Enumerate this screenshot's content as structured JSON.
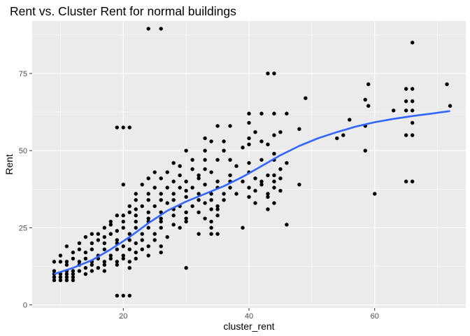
{
  "chart_data": {
    "type": "scatter",
    "title": "Rent vs. Cluster Rent for normal buildings",
    "xlabel": "cluster_rent",
    "ylabel": "Rent",
    "xlim": [
      5.5,
      74.5
    ],
    "ylim": [
      -1,
      92
    ],
    "x_ticks": [
      20,
      40,
      60
    ],
    "y_ticks": [
      0,
      25,
      50,
      75
    ],
    "grid": true,
    "legend": "none",
    "colors": {
      "panel": "#ebebeb",
      "grid_major": "#ffffff",
      "points": "#000000",
      "smooth": "#3366ff",
      "tick_label": "#4d4d4d"
    },
    "points": [
      [
        24,
        89.5
      ],
      [
        26,
        89.5
      ],
      [
        66,
        85
      ],
      [
        43,
        75
      ],
      [
        44,
        75
      ],
      [
        71.5,
        71.5
      ],
      [
        59,
        71.5
      ],
      [
        65,
        70
      ],
      [
        66,
        70
      ],
      [
        49,
        67
      ],
      [
        58.5,
        66.5
      ],
      [
        65,
        66
      ],
      [
        66,
        66
      ],
      [
        59,
        64.5
      ],
      [
        72,
        64.5
      ],
      [
        40,
        62
      ],
      [
        42,
        62
      ],
      [
        44,
        62
      ],
      [
        46,
        62
      ],
      [
        63,
        63
      ],
      [
        65,
        63
      ],
      [
        66,
        63
      ],
      [
        56,
        60
      ],
      [
        40,
        59
      ],
      [
        35,
        58
      ],
      [
        37,
        58
      ],
      [
        58.5,
        58
      ],
      [
        66,
        59
      ],
      [
        19,
        57.5
      ],
      [
        20,
        57.5
      ],
      [
        21,
        57.5
      ],
      [
        48,
        57
      ],
      [
        41,
        56
      ],
      [
        45,
        56
      ],
      [
        54,
        54
      ],
      [
        55,
        55
      ],
      [
        33,
        54
      ],
      [
        34,
        53
      ],
      [
        36,
        53
      ],
      [
        40,
        54
      ],
      [
        42,
        53
      ],
      [
        44,
        55
      ],
      [
        66,
        55
      ],
      [
        65,
        55
      ],
      [
        40,
        52
      ],
      [
        43,
        52
      ],
      [
        30,
        50
      ],
      [
        33,
        50
      ],
      [
        36,
        50
      ],
      [
        39,
        51
      ],
      [
        58.5,
        50
      ],
      [
        44,
        49
      ],
      [
        28,
        46
      ],
      [
        31,
        47
      ],
      [
        33,
        47
      ],
      [
        35,
        47
      ],
      [
        37,
        47
      ],
      [
        29,
        45
      ],
      [
        31,
        44
      ],
      [
        33,
        44
      ],
      [
        38,
        45
      ],
      [
        40,
        46
      ],
      [
        42,
        47
      ],
      [
        44,
        47
      ],
      [
        46,
        46
      ],
      [
        25,
        43
      ],
      [
        27,
        43
      ],
      [
        29,
        42
      ],
      [
        32,
        42
      ],
      [
        34,
        43
      ],
      [
        37,
        42
      ],
      [
        40,
        43
      ],
      [
        43,
        42
      ],
      [
        44,
        42
      ],
      [
        45,
        44
      ],
      [
        24,
        41
      ],
      [
        26,
        41
      ],
      [
        28,
        40
      ],
      [
        30,
        40
      ],
      [
        32,
        41
      ],
      [
        35,
        40
      ],
      [
        37,
        40
      ],
      [
        39,
        40
      ],
      [
        41,
        41
      ],
      [
        42,
        40
      ],
      [
        44,
        40
      ],
      [
        45,
        41
      ],
      [
        20,
        39
      ],
      [
        23,
        39
      ],
      [
        25,
        38
      ],
      [
        27,
        38
      ],
      [
        29,
        38
      ],
      [
        31,
        38
      ],
      [
        33,
        39
      ],
      [
        35,
        38
      ],
      [
        37,
        38
      ],
      [
        40,
        38
      ],
      [
        42,
        39
      ],
      [
        44,
        38
      ],
      [
        48,
        39
      ],
      [
        65,
        40
      ],
      [
        66,
        40
      ],
      [
        22,
        36
      ],
      [
        24,
        36
      ],
      [
        26,
        36
      ],
      [
        28,
        36
      ],
      [
        30,
        37
      ],
      [
        32,
        36
      ],
      [
        34,
        36
      ],
      [
        36,
        36
      ],
      [
        38,
        36
      ],
      [
        41,
        37
      ],
      [
        43,
        36
      ],
      [
        45,
        37
      ],
      [
        60,
        36
      ],
      [
        22,
        34
      ],
      [
        24,
        34
      ],
      [
        26,
        34
      ],
      [
        28,
        34
      ],
      [
        30,
        35
      ],
      [
        32,
        34
      ],
      [
        34,
        34
      ],
      [
        36,
        34
      ],
      [
        40,
        35
      ],
      [
        43,
        35
      ],
      [
        21,
        32
      ],
      [
        23,
        32
      ],
      [
        25,
        32
      ],
      [
        27,
        33
      ],
      [
        29,
        32
      ],
      [
        31,
        32
      ],
      [
        33,
        33
      ],
      [
        35,
        32
      ],
      [
        41,
        33
      ],
      [
        44,
        33
      ],
      [
        21,
        30
      ],
      [
        22,
        31
      ],
      [
        24,
        30
      ],
      [
        26,
        30
      ],
      [
        28,
        31
      ],
      [
        30,
        30
      ],
      [
        32,
        30
      ],
      [
        34,
        31
      ],
      [
        35,
        31
      ],
      [
        43,
        31
      ],
      [
        19,
        29
      ],
      [
        20,
        29
      ],
      [
        22,
        29
      ],
      [
        24,
        28
      ],
      [
        26,
        28
      ],
      [
        28,
        29
      ],
      [
        30,
        28
      ],
      [
        33,
        28
      ],
      [
        35,
        29
      ],
      [
        18,
        27
      ],
      [
        20,
        27
      ],
      [
        22,
        27
      ],
      [
        24,
        27
      ],
      [
        26,
        27
      ],
      [
        28,
        26
      ],
      [
        30,
        27
      ],
      [
        34,
        27
      ],
      [
        46,
        26
      ],
      [
        17,
        25
      ],
      [
        18,
        26
      ],
      [
        20,
        25
      ],
      [
        22,
        25
      ],
      [
        24,
        25
      ],
      [
        26,
        25
      ],
      [
        29,
        25
      ],
      [
        34,
        25
      ],
      [
        39,
        25
      ],
      [
        15,
        23
      ],
      [
        16,
        23
      ],
      [
        18,
        23
      ],
      [
        19,
        24
      ],
      [
        21,
        23
      ],
      [
        23,
        23
      ],
      [
        25,
        23
      ],
      [
        32,
        23
      ],
      [
        34,
        23
      ],
      [
        35,
        23
      ],
      [
        14,
        22
      ],
      [
        16,
        21
      ],
      [
        17,
        22
      ],
      [
        19,
        21
      ],
      [
        21,
        21
      ],
      [
        23,
        21
      ],
      [
        25,
        21
      ],
      [
        27,
        22
      ],
      [
        13,
        20
      ],
      [
        15,
        20
      ],
      [
        17,
        20
      ],
      [
        19,
        20
      ],
      [
        20,
        19
      ],
      [
        22,
        20
      ],
      [
        24,
        19
      ],
      [
        26,
        19
      ],
      [
        11,
        19
      ],
      [
        13,
        18
      ],
      [
        15,
        18
      ],
      [
        17,
        18
      ],
      [
        19,
        18
      ],
      [
        21,
        18
      ],
      [
        23,
        18
      ],
      [
        12,
        17
      ],
      [
        14,
        17
      ],
      [
        16,
        16
      ],
      [
        18,
        16
      ],
      [
        20,
        16
      ],
      [
        22,
        17
      ],
      [
        24,
        16
      ],
      [
        26,
        17
      ],
      [
        10,
        16
      ],
      [
        12,
        15
      ],
      [
        14,
        15
      ],
      [
        16,
        15
      ],
      [
        18,
        15
      ],
      [
        20,
        15
      ],
      [
        22,
        15
      ],
      [
        9,
        14
      ],
      [
        10,
        14
      ],
      [
        11,
        14
      ],
      [
        13,
        14
      ],
      [
        15,
        14
      ],
      [
        17,
        14
      ],
      [
        19,
        14
      ],
      [
        21,
        14
      ],
      [
        11,
        13
      ],
      [
        13,
        13
      ],
      [
        15,
        13
      ],
      [
        17,
        13
      ],
      [
        19,
        13
      ],
      [
        21,
        12
      ],
      [
        30,
        12
      ],
      [
        14,
        12
      ],
      [
        16,
        12
      ],
      [
        12,
        11
      ],
      [
        9,
        11
      ],
      [
        11,
        11
      ],
      [
        13,
        11
      ],
      [
        15,
        11
      ],
      [
        17,
        11
      ],
      [
        9,
        10
      ],
      [
        10,
        10
      ],
      [
        11,
        10
      ],
      [
        12,
        10
      ],
      [
        14,
        10
      ],
      [
        9,
        9
      ],
      [
        10,
        9
      ],
      [
        11,
        9
      ],
      [
        12,
        9
      ],
      [
        9,
        8
      ],
      [
        10,
        8
      ],
      [
        11,
        8
      ],
      [
        12,
        8
      ],
      [
        19,
        3
      ],
      [
        20,
        3
      ],
      [
        21,
        3
      ]
    ],
    "smooth_line": {
      "x": [
        9,
        12,
        15,
        18,
        21,
        24,
        27,
        30,
        33,
        36,
        39,
        42,
        45,
        48,
        51,
        54,
        57,
        60,
        63,
        66,
        69,
        72
      ],
      "y": [
        10,
        12,
        14.5,
        18,
        22,
        26.5,
        30.5,
        33.5,
        36,
        38.5,
        41.5,
        45,
        48.5,
        51.5,
        54,
        56,
        57.8,
        59.2,
        60.3,
        61.2,
        62,
        62.8
      ]
    }
  }
}
